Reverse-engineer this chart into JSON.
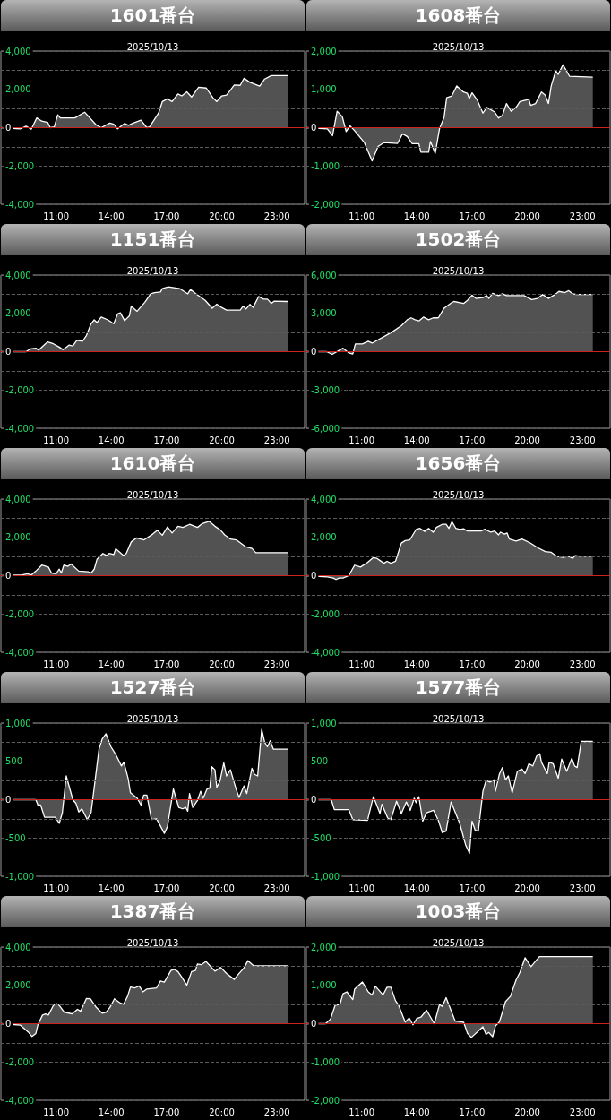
{
  "chart_data": [
    {
      "type": "area",
      "title": "1601番台",
      "subtitle": "2025/10/13",
      "color": "#ffffff",
      "grid": "y",
      "xlim": [
        8,
        24.5
      ],
      "xticks": [
        {
          "value": 11,
          "label": "11:00"
        },
        {
          "value": 14,
          "label": "14:00"
        },
        {
          "value": 17,
          "label": "17:00"
        },
        {
          "value": 20,
          "label": "20:00"
        },
        {
          "value": 23,
          "label": "23:00"
        }
      ],
      "ylim": [
        -4000,
        4000
      ],
      "yticks": [
        {
          "value": -4000,
          "label": "-4,000"
        },
        {
          "value": -3000,
          "label": null
        },
        {
          "value": -2000,
          "label": "-2,000"
        },
        {
          "value": -1000,
          "label": null
        },
        {
          "value": 0,
          "label": "0"
        },
        {
          "value": 1000,
          "label": null
        },
        {
          "value": 2000,
          "label": "2,000"
        },
        {
          "value": 3000,
          "label": null
        },
        {
          "value": 4000,
          "label": "4,000"
        }
      ],
      "ref_lines": [
        {
          "axis": "y",
          "value": 0,
          "color": "#cc2222"
        }
      ],
      "x": [
        8,
        9.06,
        9.37,
        9.65,
        9.95,
        10.22,
        10.54,
        10.68,
        10.9,
        11.09,
        11.23,
        12.02,
        12.55,
        13.18,
        13.45,
        13.92,
        14.13,
        14.34,
        14.72,
        14.93,
        15.19,
        15.61,
        15.93,
        16.08,
        16.56,
        16.77,
        17.05,
        17.3,
        17.62,
        17.83,
        18.1,
        18.36,
        18.74,
        19.16,
        19.52,
        19.73,
        20,
        20.26,
        20.68,
        21,
        21.21,
        21.53,
        22.06,
        22.33,
        22.69,
        23.58
      ],
      "values": [
        0,
        -60,
        80,
        -80,
        510,
        340,
        280,
        0,
        40,
        670,
        510,
        510,
        810,
        140,
        0,
        240,
        180,
        -60,
        220,
        120,
        240,
        390,
        0,
        40,
        750,
        1360,
        1500,
        1360,
        1760,
        1660,
        1870,
        1600,
        2110,
        2070,
        1560,
        1360,
        1660,
        1700,
        2230,
        2210,
        2580,
        2370,
        2170,
        2540,
        2720,
        2720
      ]
    },
    {
      "type": "area",
      "title": "1608番台",
      "subtitle": "2025/10/13",
      "color": "#ffffff",
      "grid": "y",
      "xlim": [
        8,
        24.5
      ],
      "xticks": [
        {
          "value": 11,
          "label": "11:00"
        },
        {
          "value": 14,
          "label": "14:00"
        },
        {
          "value": 17,
          "label": "17:00"
        },
        {
          "value": 20,
          "label": "20:00"
        },
        {
          "value": 23,
          "label": "23:00"
        }
      ],
      "ylim": [
        -2000,
        2000
      ],
      "yticks": [
        {
          "value": -2000,
          "label": "-2,000"
        },
        {
          "value": -1500,
          "label": null
        },
        {
          "value": -1000,
          "label": "-1,000"
        },
        {
          "value": -500,
          "label": null
        },
        {
          "value": 0,
          "label": "0"
        },
        {
          "value": 500,
          "label": null
        },
        {
          "value": 1000,
          "label": "1,000"
        },
        {
          "value": 1500,
          "label": null
        },
        {
          "value": 2000,
          "label": "2,000"
        }
      ],
      "ref_lines": [
        {
          "axis": "y",
          "value": 0,
          "color": "#cc2222"
        }
      ],
      "x": [
        8,
        9.14,
        9.42,
        9.67,
        9.95,
        10.16,
        10.37,
        10.62,
        11.15,
        11.57,
        11.89,
        12.21,
        12.95,
        13.22,
        13.48,
        13.75,
        14.11,
        14.22,
        14.64,
        14.74,
        15,
        15.23,
        15.48,
        15.62,
        15.9,
        16.17,
        16.53,
        16.74,
        16.85,
        17,
        17.27,
        17.59,
        17.8,
        18.23,
        18.44,
        18.65,
        18.87,
        19.12,
        19.39,
        19.6,
        20.09,
        20.18,
        20.45,
        20.77,
        20.98,
        21.15,
        21.3,
        21.55,
        21.68,
        21.94,
        22.3,
        23.56
      ],
      "values": [
        0,
        -30,
        -210,
        430,
        290,
        -100,
        50,
        -80,
        -390,
        -870,
        -490,
        -390,
        -410,
        -160,
        -230,
        -420,
        -420,
        -640,
        -640,
        -360,
        -670,
        -30,
        270,
        780,
        830,
        1090,
        930,
        900,
        760,
        910,
        730,
        380,
        530,
        410,
        250,
        320,
        630,
        430,
        530,
        680,
        740,
        580,
        630,
        930,
        850,
        630,
        1090,
        1490,
        1390,
        1640,
        1340,
        1320
      ]
    },
    {
      "type": "area",
      "title": "1151番台",
      "subtitle": "2025/10/13",
      "color": "#ffffff",
      "grid": "y",
      "xlim": [
        8,
        24.5
      ],
      "xticks": [
        {
          "value": 11,
          "label": "11:00"
        },
        {
          "value": 14,
          "label": "14:00"
        },
        {
          "value": 17,
          "label": "17:00"
        },
        {
          "value": 20,
          "label": "20:00"
        },
        {
          "value": 23,
          "label": "23:00"
        }
      ],
      "ylim": [
        -4000,
        4000
      ],
      "yticks": [
        {
          "value": -4000,
          "label": "-4,000"
        },
        {
          "value": -3000,
          "label": null
        },
        {
          "value": -2000,
          "label": "-2,000"
        },
        {
          "value": -1000,
          "label": null
        },
        {
          "value": 0,
          "label": "0"
        },
        {
          "value": 1000,
          "label": null
        },
        {
          "value": 2000,
          "label": "2,000"
        },
        {
          "value": 3000,
          "label": null
        },
        {
          "value": 4000,
          "label": "4,000"
        }
      ],
      "ref_lines": [
        {
          "axis": "y",
          "value": 0,
          "color": "#cc2222"
        }
      ],
      "x": [
        8,
        9.37,
        9.59,
        9.9,
        10.05,
        10.54,
        10.85,
        11.17,
        11.38,
        11.7,
        11.91,
        12.12,
        12.44,
        12.65,
        12.9,
        13.07,
        13.22,
        13.45,
        13.81,
        14.13,
        14.34,
        14.49,
        14.72,
        14.98,
        15.08,
        15.4,
        15.82,
        16.14,
        16.35,
        16.67,
        16.77,
        17.09,
        17.73,
        18.15,
        18.3,
        18.57,
        19.1,
        19.48,
        19.73,
        19.99,
        20.26,
        21,
        21.15,
        21.32,
        21.53,
        21.7,
        22,
        22.27,
        22.48,
        22.69,
        22.86,
        23.58
      ],
      "values": [
        0,
        0,
        140,
        180,
        80,
        510,
        410,
        240,
        100,
        340,
        300,
        590,
        550,
        850,
        1460,
        1660,
        1520,
        1810,
        1660,
        1460,
        1970,
        2030,
        1620,
        1870,
        2370,
        2110,
        2580,
        3020,
        3080,
        3120,
        3290,
        3390,
        3290,
        3020,
        3250,
        3040,
        2680,
        2270,
        2480,
        2310,
        2170,
        2170,
        2370,
        2230,
        2470,
        2310,
        2880,
        2740,
        2740,
        2520,
        2640,
        2620
      ]
    },
    {
      "type": "area",
      "title": "1502番台",
      "subtitle": "2025/10/13",
      "color": "#ffffff",
      "grid": "y",
      "xlim": [
        8,
        24.5
      ],
      "xticks": [
        {
          "value": 11,
          "label": "11:00"
        },
        {
          "value": 14,
          "label": "14:00"
        },
        {
          "value": 17,
          "label": "17:00"
        },
        {
          "value": 20,
          "label": "20:00"
        },
        {
          "value": 23,
          "label": "23:00"
        }
      ],
      "ylim": [
        -6000,
        6000
      ],
      "yticks": [
        {
          "value": -6000,
          "label": "-6,000"
        },
        {
          "value": -4500,
          "label": null
        },
        {
          "value": -3000,
          "label": "-3,000"
        },
        {
          "value": -1500,
          "label": null
        },
        {
          "value": 0,
          "label": "0"
        },
        {
          "value": 1500,
          "label": null
        },
        {
          "value": 3000,
          "label": "3,000"
        },
        {
          "value": 4500,
          "label": null
        },
        {
          "value": 6000,
          "label": "6,000"
        }
      ],
      "ref_lines": [
        {
          "axis": "y",
          "value": 0,
          "color": "#cc2222"
        }
      ],
      "x": [
        8,
        9.1,
        9.4,
        9.99,
        10.3,
        10.52,
        10.66,
        11.04,
        11.36,
        11.57,
        12.63,
        13.16,
        13.48,
        13.69,
        13.9,
        14.11,
        14.36,
        14.64,
        14.89,
        15.17,
        15.48,
        15.86,
        16.01,
        16.54,
        16.75,
        17,
        17.21,
        17.59,
        17.8,
        17.91,
        18.12,
        18.44,
        18.65,
        18.87,
        19.82,
        20.24,
        20.56,
        20.83,
        21.15,
        21.51,
        21.72,
        22.04,
        22.25,
        22.46,
        22.67,
        23.56
      ],
      "values": [
        0,
        0,
        -210,
        270,
        -90,
        -180,
        610,
        610,
        820,
        670,
        1520,
        2040,
        2500,
        2650,
        2500,
        2410,
        2710,
        2500,
        2650,
        2650,
        3410,
        3810,
        3930,
        3780,
        4020,
        4420,
        4170,
        4230,
        4390,
        4170,
        4570,
        4390,
        4540,
        4390,
        4390,
        4080,
        4170,
        4480,
        4170,
        4480,
        4720,
        4630,
        4780,
        4540,
        4480,
        4480
      ]
    },
    {
      "type": "area",
      "title": "1610番台",
      "subtitle": "2025/10/13",
      "color": "#ffffff",
      "grid": "y",
      "xlim": [
        8,
        24.5
      ],
      "xticks": [
        {
          "value": 11,
          "label": "11:00"
        },
        {
          "value": 14,
          "label": "14:00"
        },
        {
          "value": 17,
          "label": "17:00"
        },
        {
          "value": 20,
          "label": "20:00"
        },
        {
          "value": 23,
          "label": "23:00"
        }
      ],
      "ylim": [
        -4000,
        4000
      ],
      "yticks": [
        {
          "value": -4000,
          "label": "-4,000"
        },
        {
          "value": -3000,
          "label": null
        },
        {
          "value": -2000,
          "label": "-2,000"
        },
        {
          "value": -1000,
          "label": null
        },
        {
          "value": 0,
          "label": "0"
        },
        {
          "value": 1000,
          "label": null
        },
        {
          "value": 2000,
          "label": "2,000"
        },
        {
          "value": 3000,
          "label": null
        },
        {
          "value": 4000,
          "label": "4,000"
        }
      ],
      "ref_lines": [
        {
          "axis": "y",
          "value": 0,
          "color": "#cc2222"
        }
      ],
      "x": [
        8,
        9.16,
        9.44,
        9.65,
        9.9,
        10.22,
        10.58,
        10.75,
        11,
        11.17,
        11.28,
        11.42,
        11.64,
        11.81,
        12.23,
        12.76,
        12.9,
        13.07,
        13.22,
        13.54,
        13.75,
        13.88,
        14.13,
        14.24,
        14.66,
        14.81,
        15.08,
        15.36,
        15.78,
        16.25,
        16.5,
        16.77,
        17.05,
        17.3,
        17.62,
        17.89,
        18.25,
        18.68,
        18.95,
        19.31,
        19.63,
        19.94,
        20.16,
        20.47,
        20.79,
        21.28,
        21.64,
        21.85,
        23.58
      ],
      "values": [
        0,
        40,
        100,
        40,
        240,
        550,
        450,
        140,
        100,
        340,
        140,
        550,
        490,
        610,
        240,
        200,
        140,
        340,
        850,
        1160,
        1050,
        1160,
        1100,
        1400,
        1050,
        1160,
        1760,
        1970,
        1870,
        2170,
        2370,
        2110,
        2540,
        2230,
        2580,
        2520,
        2680,
        2520,
        2720,
        2840,
        2580,
        2370,
        2130,
        1910,
        1870,
        1520,
        1420,
        1200,
        1200
      ]
    },
    {
      "type": "area",
      "title": "1656番台",
      "subtitle": "2025/10/13",
      "color": "#ffffff",
      "grid": "y",
      "xlim": [
        8,
        24.5
      ],
      "xticks": [
        {
          "value": 11,
          "label": "11:00"
        },
        {
          "value": 14,
          "label": "14:00"
        },
        {
          "value": 17,
          "label": "17:00"
        },
        {
          "value": 20,
          "label": "20:00"
        },
        {
          "value": 23,
          "label": "23:00"
        }
      ],
      "ylim": [
        -4000,
        4000
      ],
      "yticks": [
        {
          "value": -4000,
          "label": "-4,000"
        },
        {
          "value": -3000,
          "label": null
        },
        {
          "value": -2000,
          "label": "-2,000"
        },
        {
          "value": -1000,
          "label": null
        },
        {
          "value": 0,
          "label": "0"
        },
        {
          "value": 1000,
          "label": null
        },
        {
          "value": 2000,
          "label": "2,000"
        },
        {
          "value": 3000,
          "label": null
        },
        {
          "value": 4000,
          "label": "4,000"
        }
      ],
      "ref_lines": [
        {
          "axis": "y",
          "value": 0,
          "color": "#cc2222"
        }
      ],
      "x": [
        8,
        9.14,
        9.46,
        9.61,
        9.78,
        9.99,
        10.3,
        10.62,
        10.94,
        11.32,
        11.64,
        11.85,
        12,
        12.21,
        12.38,
        12.59,
        12.84,
        13.16,
        13.37,
        13.62,
        13.96,
        14.17,
        14.43,
        14.64,
        14.89,
        15.06,
        15.38,
        15.59,
        15.74,
        15.91,
        16.12,
        16.33,
        16.54,
        16.75,
        17.49,
        17.7,
        18.02,
        18.23,
        18.44,
        18.55,
        18.76,
        18.9,
        19.03,
        19.39,
        19.71,
        20.14,
        20.56,
        20.98,
        21.3,
        21.61,
        21.93,
        22.25,
        22.46,
        22.61,
        22.88,
        23.56
      ],
      "values": [
        0,
        -60,
        -120,
        -200,
        -120,
        -120,
        0,
        550,
        450,
        690,
        950,
        890,
        790,
        650,
        750,
        650,
        750,
        1700,
        1830,
        1870,
        2410,
        2470,
        2310,
        2470,
        2270,
        2520,
        2680,
        2680,
        2470,
        2820,
        2470,
        2410,
        2450,
        2330,
        2330,
        2430,
        2270,
        2330,
        2130,
        2270,
        2170,
        2230,
        1910,
        1810,
        1910,
        1720,
        1460,
        1260,
        1220,
        1010,
        950,
        1010,
        910,
        1050,
        1010,
        1010
      ]
    },
    {
      "type": "area",
      "title": "1527番台",
      "subtitle": "2025/10/13",
      "color": "#ffffff",
      "grid": "y",
      "xlim": [
        8,
        24.5
      ],
      "xticks": [
        {
          "value": 11,
          "label": "11:00"
        },
        {
          "value": 14,
          "label": "14:00"
        },
        {
          "value": 17,
          "label": "17:00"
        },
        {
          "value": 20,
          "label": "20:00"
        },
        {
          "value": 23,
          "label": "23:00"
        }
      ],
      "ylim": [
        -1000,
        1000
      ],
      "yticks": [
        {
          "value": -1000,
          "label": "-1,000"
        },
        {
          "value": -750,
          "label": null
        },
        {
          "value": -500,
          "label": "-500"
        },
        {
          "value": -250,
          "label": null
        },
        {
          "value": 0,
          "label": "0"
        },
        {
          "value": 250,
          "label": null
        },
        {
          "value": 500,
          "label": "500"
        },
        {
          "value": 750,
          "label": null
        },
        {
          "value": 1000,
          "label": "1,000"
        }
      ],
      "ref_lines": [
        {
          "axis": "y",
          "value": 0,
          "color": "#cc2222"
        }
      ],
      "x": [
        8,
        9.9,
        10.01,
        10.16,
        10.37,
        10.96,
        11.17,
        11.34,
        11.55,
        11.91,
        12.08,
        12.23,
        12.4,
        12.69,
        12.9,
        13.07,
        13.33,
        13.5,
        13.71,
        13.98,
        14.24,
        14.55,
        14.68,
        14.91,
        15.04,
        15.4,
        15.61,
        15.76,
        15.93,
        16.18,
        16.46,
        16.88,
        17.05,
        17.37,
        17.66,
        17.87,
        18.04,
        18.15,
        18.25,
        18.42,
        18.68,
        18.85,
        18.99,
        19.2,
        19.35,
        19.46,
        19.63,
        19.73,
        19.9,
        20.11,
        20.26,
        20.47,
        20.79,
        20.94,
        21.21,
        21.36,
        21.64,
        21.78,
        21.95,
        22.17,
        22.33,
        22.48,
        22.63,
        22.8,
        23.58
      ],
      "values": [
        0,
        0,
        -70,
        -70,
        -230,
        -230,
        -310,
        -170,
        310,
        0,
        -50,
        -160,
        -120,
        -260,
        -170,
        160,
        660,
        790,
        860,
        690,
        590,
        440,
        490,
        280,
        90,
        20,
        -70,
        60,
        60,
        -260,
        -250,
        -440,
        -350,
        140,
        -100,
        -120,
        -100,
        -150,
        80,
        -100,
        -10,
        110,
        20,
        140,
        150,
        430,
        390,
        160,
        240,
        480,
        310,
        390,
        130,
        30,
        180,
        80,
        410,
        330,
        310,
        920,
        750,
        690,
        770,
        660,
        660
      ]
    },
    {
      "type": "area",
      "title": "1577番台",
      "subtitle": "2025/10/13",
      "color": "#ffffff",
      "grid": "y",
      "xlim": [
        8,
        24.5
      ],
      "xticks": [
        {
          "value": 11,
          "label": "11:00"
        },
        {
          "value": 14,
          "label": "14:00"
        },
        {
          "value": 17,
          "label": "17:00"
        },
        {
          "value": 20,
          "label": "20:00"
        },
        {
          "value": 23,
          "label": "23:00"
        }
      ],
      "ylim": [
        -1000,
        1000
      ],
      "yticks": [
        {
          "value": -1000,
          "label": "-1,000"
        },
        {
          "value": -750,
          "label": null
        },
        {
          "value": -500,
          "label": "-500"
        },
        {
          "value": -250,
          "label": null
        },
        {
          "value": 0,
          "label": "0"
        },
        {
          "value": 250,
          "label": null
        },
        {
          "value": 500,
          "label": "500"
        },
        {
          "value": 750,
          "label": null
        },
        {
          "value": 1000,
          "label": "1,000"
        }
      ],
      "ref_lines": [
        {
          "axis": "y",
          "value": 0,
          "color": "#cc2222"
        }
      ],
      "x": [
        8,
        9.35,
        9.52,
        10.3,
        10.52,
        11.32,
        11.64,
        12,
        12.1,
        12.42,
        12.59,
        12.9,
        13.16,
        13.43,
        13.64,
        13.86,
        13.96,
        14.11,
        14.32,
        14.53,
        14.91,
        15.17,
        15.38,
        15.59,
        15.86,
        16.33,
        16.65,
        16.86,
        17,
        17.17,
        17.34,
        17.59,
        17.76,
        17.97,
        18.19,
        18.27,
        18.48,
        18.65,
        18.82,
        18.97,
        19.18,
        19.46,
        19.71,
        19.88,
        20.09,
        20.3,
        20.51,
        20.68,
        20.77,
        21.09,
        21.19,
        21.4,
        21.68,
        21.87,
        22.14,
        22.42,
        22.57,
        22.71,
        22.93,
        23.56
      ],
      "values": [
        0,
        0,
        -130,
        -130,
        -260,
        -270,
        40,
        -180,
        -60,
        -240,
        -260,
        -20,
        -180,
        -30,
        -140,
        20,
        -40,
        40,
        -280,
        -170,
        -140,
        -270,
        -430,
        -410,
        -30,
        -310,
        -590,
        -700,
        -280,
        -400,
        -410,
        110,
        250,
        230,
        260,
        110,
        330,
        420,
        260,
        310,
        90,
        370,
        400,
        340,
        470,
        440,
        570,
        600,
        490,
        340,
        490,
        470,
        280,
        530,
        370,
        540,
        440,
        420,
        760,
        760
      ]
    },
    {
      "type": "area",
      "title": "1387番台",
      "subtitle": "2025/10/13",
      "color": "#ffffff",
      "grid": "y",
      "xlim": [
        8,
        24.5
      ],
      "xticks": [
        {
          "value": 11,
          "label": "11:00"
        },
        {
          "value": 14,
          "label": "14:00"
        },
        {
          "value": 17,
          "label": "17:00"
        },
        {
          "value": 20,
          "label": "20:00"
        },
        {
          "value": 23,
          "label": "23:00"
        }
      ],
      "ylim": [
        -4000,
        4000
      ],
      "yticks": [
        {
          "value": -4000,
          "label": "-4,000"
        },
        {
          "value": -3000,
          "label": null
        },
        {
          "value": -2000,
          "label": "-2,000"
        },
        {
          "value": -1000,
          "label": null
        },
        {
          "value": 0,
          "label": "0"
        },
        {
          "value": 1000,
          "label": null
        },
        {
          "value": 2000,
          "label": "2,000"
        },
        {
          "value": 3000,
          "label": null
        },
        {
          "value": 4000,
          "label": "4,000"
        }
      ],
      "ref_lines": [
        {
          "axis": "y",
          "value": 0,
          "color": "#cc2222"
        }
      ],
      "x": [
        8,
        9.06,
        9.48,
        9.69,
        9.9,
        10.01,
        10.26,
        10.43,
        10.58,
        10.85,
        11.02,
        11.17,
        11.45,
        11.7,
        11.87,
        12.16,
        12.33,
        12.65,
        12.86,
        13.18,
        13.5,
        13.71,
        13.92,
        14.17,
        14.45,
        14.66,
        14.87,
        15.04,
        15.29,
        15.51,
        15.72,
        15.93,
        16.46,
        16.67,
        16.88,
        17.24,
        17.41,
        17.62,
        17.83,
        18.1,
        18.36,
        18.57,
        18.68,
        18.89,
        19.14,
        19.63,
        19.94,
        20.26,
        20.68,
        20.9,
        21.21,
        21.42,
        21.74,
        23.58
      ],
      "values": [
        0,
        -80,
        -430,
        -670,
        -510,
        -60,
        450,
        510,
        450,
        950,
        1050,
        950,
        590,
        550,
        510,
        750,
        650,
        1320,
        1300,
        850,
        550,
        590,
        850,
        1300,
        1100,
        1010,
        1400,
        1910,
        1870,
        1970,
        1660,
        1810,
        1870,
        2230,
        2170,
        2780,
        2840,
        2720,
        2430,
        2010,
        2720,
        2780,
        3120,
        3080,
        3250,
        2740,
        2940,
        2620,
        2310,
        2580,
        2920,
        3290,
        3020,
        3020
      ]
    },
    {
      "type": "area",
      "title": "1003番台",
      "subtitle": "2025/10/13",
      "color": "#ffffff",
      "grid": "y",
      "xlim": [
        8,
        24.5
      ],
      "xticks": [
        {
          "value": 11,
          "label": "11:00"
        },
        {
          "value": 14,
          "label": "14:00"
        },
        {
          "value": 17,
          "label": "17:00"
        },
        {
          "value": 20,
          "label": "20:00"
        },
        {
          "value": 23,
          "label": "23:00"
        }
      ],
      "ylim": [
        -2000,
        2000
      ],
      "yticks": [
        {
          "value": -2000,
          "label": "-2,000"
        },
        {
          "value": -1500,
          "label": null
        },
        {
          "value": -1000,
          "label": "-1,000"
        },
        {
          "value": -500,
          "label": null
        },
        {
          "value": 0,
          "label": "0"
        },
        {
          "value": 500,
          "label": null
        },
        {
          "value": 1000,
          "label": "1,000"
        },
        {
          "value": 1500,
          "label": null
        },
        {
          "value": 2000,
          "label": "2,000"
        }
      ],
      "ref_lines": [
        {
          "axis": "y",
          "value": 0,
          "color": "#cc2222"
        }
      ],
      "x": [
        8,
        9.04,
        9.31,
        9.56,
        9.82,
        9.99,
        10.2,
        10.52,
        10.62,
        11.04,
        11.36,
        11.57,
        11.74,
        11.93,
        12.16,
        12.38,
        12.59,
        12.84,
        13.01,
        13.37,
        13.58,
        13.79,
        14,
        14.22,
        14.53,
        14.95,
        15.23,
        15.38,
        15.59,
        16.08,
        16.54,
        16.75,
        16.96,
        17.59,
        17.76,
        17.91,
        18.12,
        18.27,
        18.48,
        18.61,
        18.82,
        19.08,
        19.39,
        19.6,
        19.88,
        20.2,
        20.66,
        23.56
      ],
      "values": [
        0,
        0,
        120,
        480,
        500,
        780,
        830,
        630,
        900,
        1090,
        830,
        750,
        980,
        880,
        750,
        950,
        950,
        600,
        480,
        40,
        150,
        -30,
        140,
        170,
        350,
        0,
        500,
        450,
        680,
        70,
        40,
        -250,
        -360,
        -80,
        -280,
        -230,
        -340,
        -60,
        40,
        240,
        580,
        710,
        1140,
        1340,
        1720,
        1490,
        1750,
        1750
      ]
    }
  ]
}
